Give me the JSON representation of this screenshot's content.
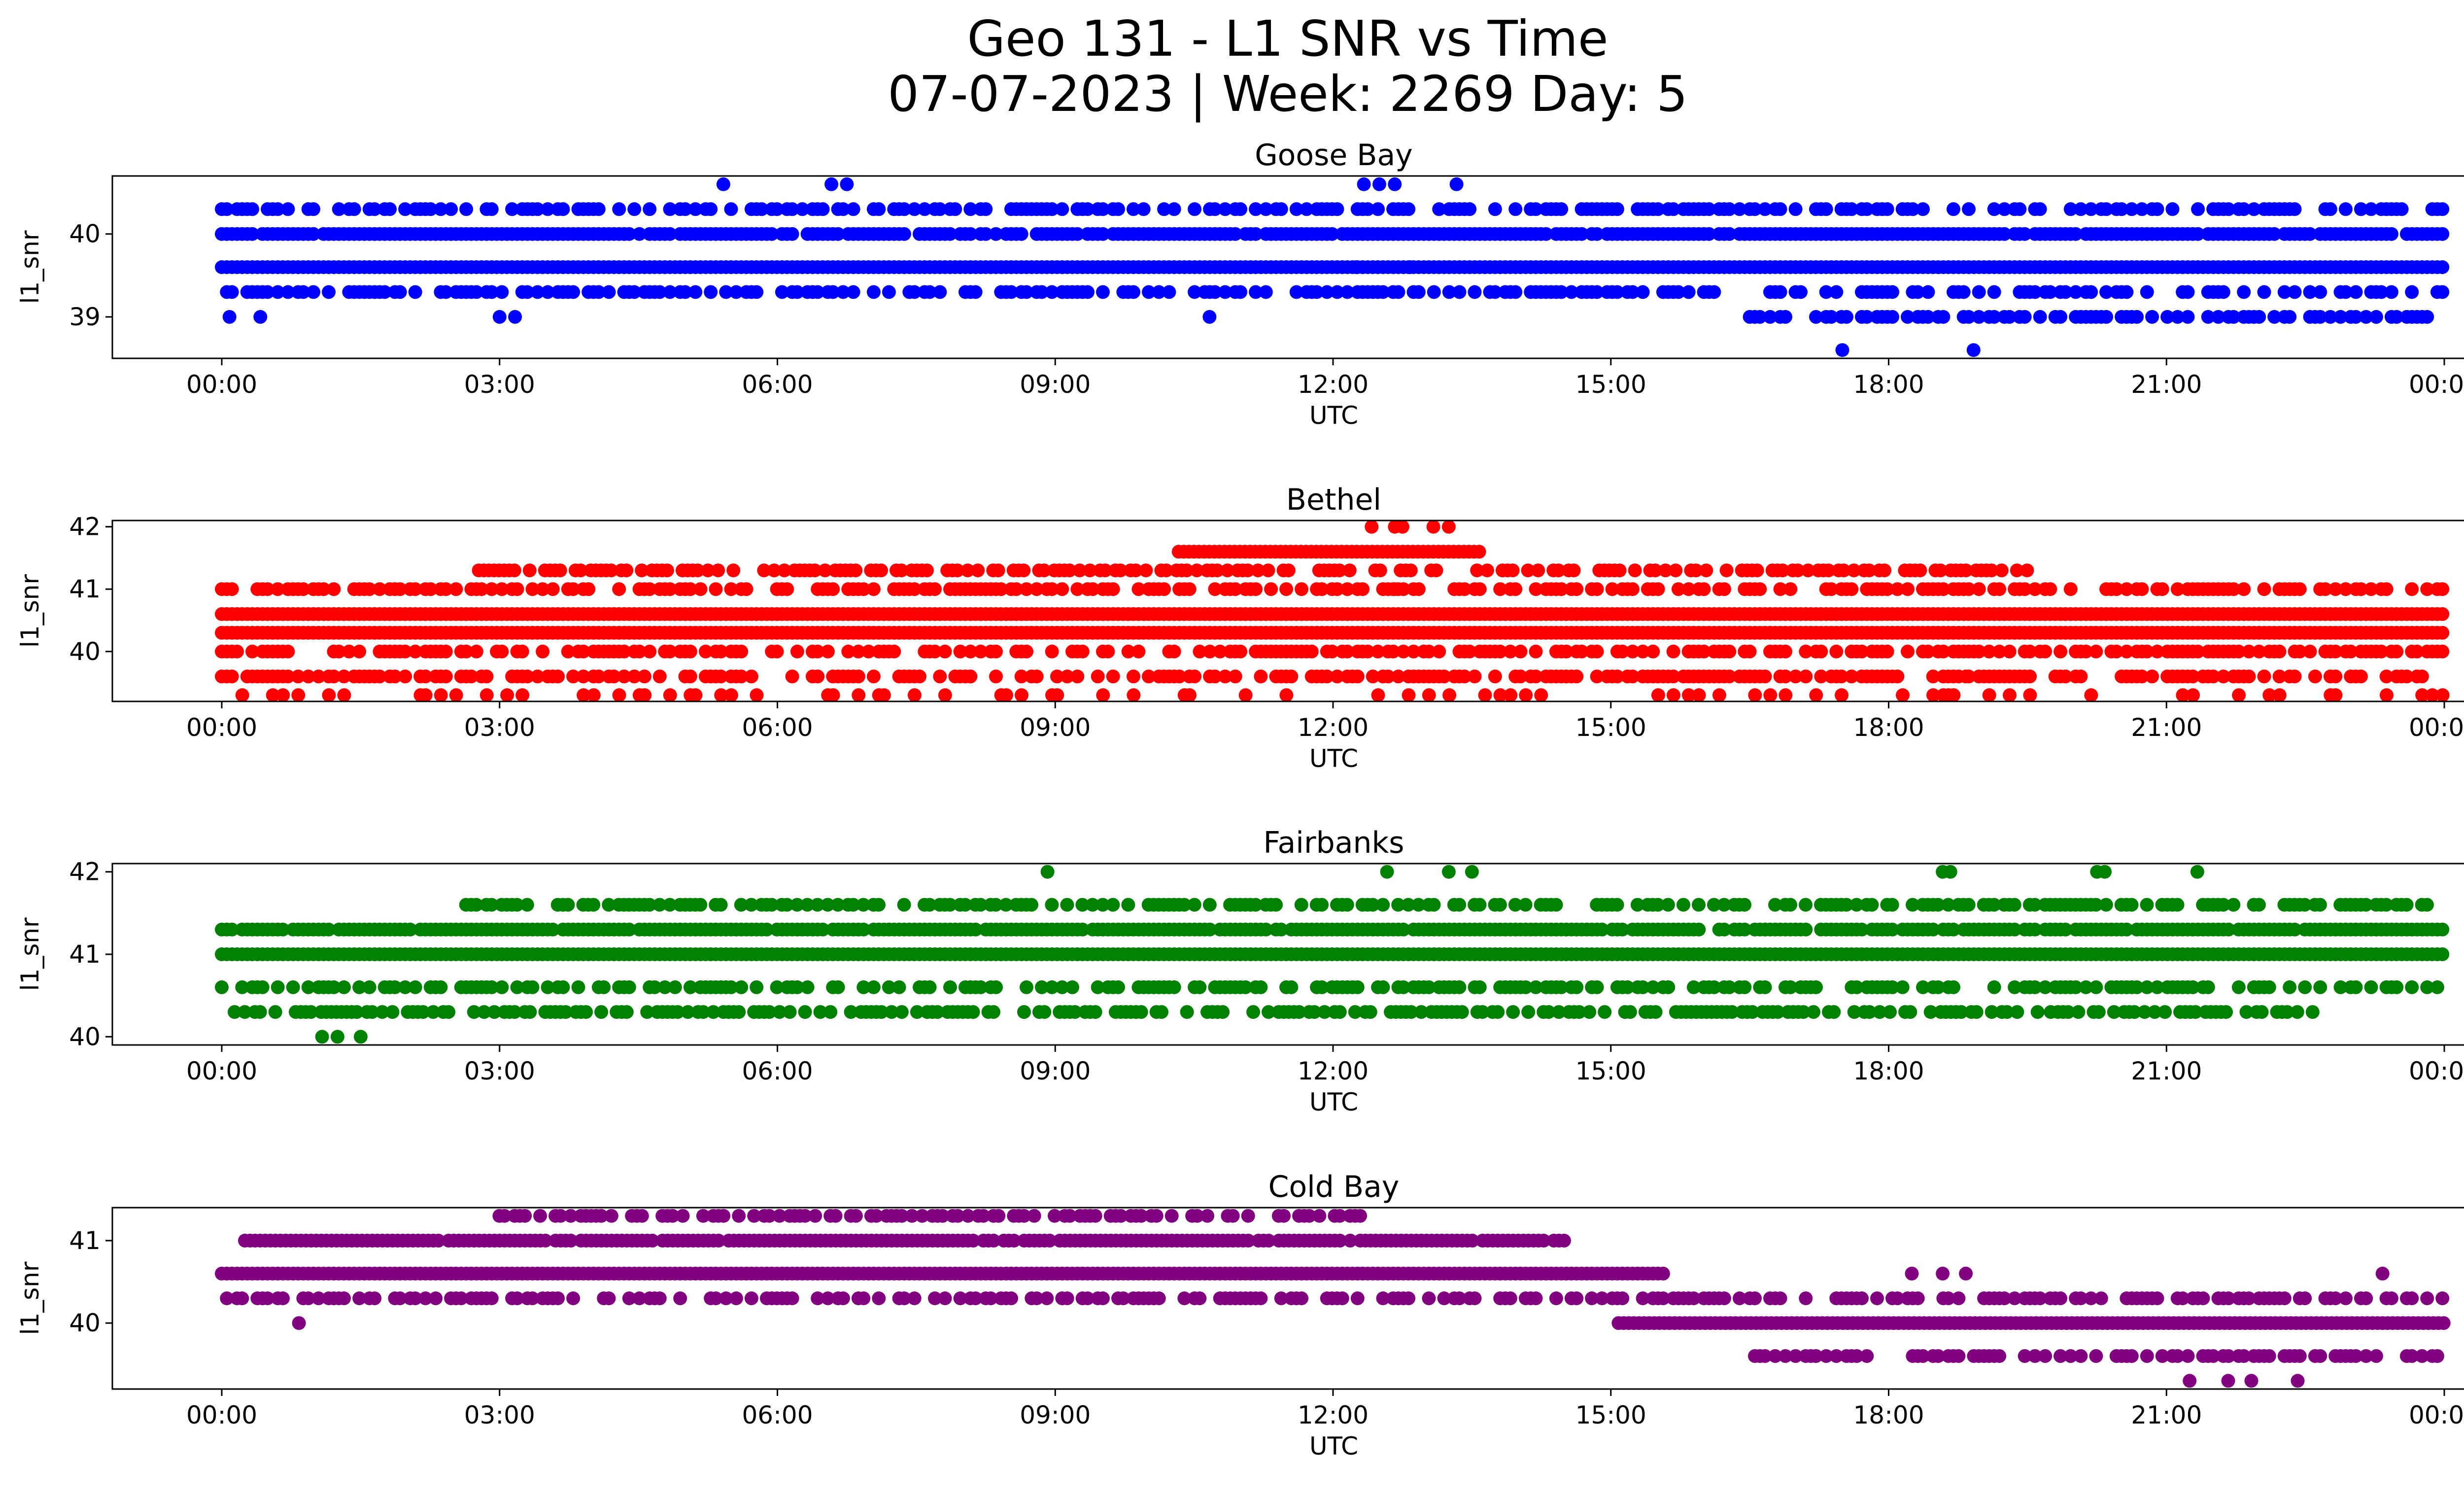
{
  "figure": {
    "title_line1": "Geo 131 - L1 SNR vs Time",
    "title_line2": "07-07-2023 | Week: 2269 Day: 5"
  },
  "chart_data": [
    {
      "type": "scatter",
      "title": "Goose Bay",
      "xlabel": "UTC",
      "ylabel": "l1_snr",
      "color": "#0000ff",
      "xlim": [
        "2023-07-07 00:00",
        "2023-07-08 00:00"
      ],
      "ylim": [
        38.5,
        40.7
      ],
      "y_ticks": [
        "39",
        "40"
      ],
      "x_ticks": [
        "00:00",
        "03:00",
        "06:00",
        "09:00",
        "12:00",
        "15:00",
        "18:00",
        "21:00",
        "00:00"
      ],
      "series": [
        {
          "x_range": [
            "00:00",
            "24:00"
          ],
          "y": 39.6,
          "coverage": "continuous"
        },
        {
          "x_range": [
            "00:00",
            "24:00"
          ],
          "y": 40.0,
          "coverage": "mostly continuous, sparse 16:30-18:00"
        },
        {
          "x_range": [
            "00:00",
            "24:00"
          ],
          "y": 39.3,
          "coverage": "intermittent"
        },
        {
          "x_range": [
            "00:00",
            "24:00"
          ],
          "y": 40.3,
          "coverage": "intermittent, dense 04:55-09:35 and 11:45-15:50"
        },
        {
          "x_range": [
            "16:30",
            "23:50"
          ],
          "y": 39.0,
          "coverage": "intermittent"
        }
      ],
      "outliers": [
        {
          "x": "00:05",
          "y": 39.0
        },
        {
          "x": "00:25",
          "y": 39.0
        },
        {
          "x": "03:00",
          "y": 39.0
        },
        {
          "x": "03:10",
          "y": 39.0
        },
        {
          "x": "10:40",
          "y": 39.0
        },
        {
          "x": "05:25",
          "y": 40.6
        },
        {
          "x": "06:35",
          "y": 40.6
        },
        {
          "x": "06:45",
          "y": 40.6
        },
        {
          "x": "12:20",
          "y": 40.6
        },
        {
          "x": "12:30",
          "y": 40.6
        },
        {
          "x": "12:40",
          "y": 40.6
        },
        {
          "x": "13:20",
          "y": 40.6
        },
        {
          "x": "17:30",
          "y": 38.6
        },
        {
          "x": "18:55",
          "y": 38.6
        },
        {
          "x": "12:15",
          "y": 39.6
        },
        {
          "x": "12:50",
          "y": 39.6
        }
      ]
    },
    {
      "type": "scatter",
      "title": "Bethel",
      "xlabel": "UTC",
      "ylabel": "l1_snr",
      "color": "#ff0000",
      "xlim": [
        "2023-07-07 00:00",
        "2023-07-08 00:00"
      ],
      "ylim": [
        39.2,
        42.1
      ],
      "y_ticks": [
        "40",
        "41",
        "42"
      ],
      "x_ticks": [
        "00:00",
        "03:00",
        "06:00",
        "09:00",
        "12:00",
        "15:00",
        "18:00",
        "21:00",
        "00:00"
      ],
      "series": [
        {
          "x_range": [
            "00:00",
            "24:00"
          ],
          "y": 40.3,
          "coverage": "continuous"
        },
        {
          "x_range": [
            "00:00",
            "24:00"
          ],
          "y": 40.6,
          "coverage": "continuous"
        },
        {
          "x_range": [
            "00:00",
            "24:00"
          ],
          "y": 40.0,
          "coverage": "intermittent"
        },
        {
          "x_range": [
            "00:00",
            "24:00"
          ],
          "y": 41.0,
          "coverage": "intermittent"
        },
        {
          "x_range": [
            "02:30",
            "19:30"
          ],
          "y": 41.3,
          "coverage": "intermittent, dense 05:50-17:50"
        },
        {
          "x_range": [
            "10:20",
            "13:35"
          ],
          "y": 41.6,
          "coverage": "continuous"
        },
        {
          "x_range": [
            "00:00",
            "24:00"
          ],
          "y": 39.6,
          "coverage": "intermittent"
        },
        {
          "x_range": [
            "00:10",
            "24:00"
          ],
          "y": 39.3,
          "coverage": "sparse"
        }
      ],
      "outliers": [
        {
          "x": "12:25",
          "y": 42.0
        },
        {
          "x": "12:40",
          "y": 42.0
        },
        {
          "x": "12:45",
          "y": 42.0
        },
        {
          "x": "13:05",
          "y": 42.0
        },
        {
          "x": "13:15",
          "y": 42.0
        },
        {
          "x": "12:40",
          "y": 41.0
        },
        {
          "x": "08:05",
          "y": 39.6
        },
        {
          "x": "18:50",
          "y": 39.6
        }
      ]
    },
    {
      "type": "scatter",
      "title": "Fairbanks",
      "xlabel": "UTC",
      "ylabel": "l1_snr",
      "color": "#008000",
      "xlim": [
        "2023-07-07 00:00",
        "2023-07-08 00:00"
      ],
      "ylim": [
        39.9,
        42.1
      ],
      "y_ticks": [
        "40",
        "41",
        "42"
      ],
      "x_ticks": [
        "00:00",
        "03:00",
        "06:00",
        "09:00",
        "12:00",
        "15:00",
        "18:00",
        "21:00",
        "00:00"
      ],
      "series": [
        {
          "x_range": [
            "00:00",
            "24:00"
          ],
          "y": 41.0,
          "coverage": "continuous"
        },
        {
          "x_range": [
            "00:00",
            "24:00"
          ],
          "y": 41.3,
          "coverage": "mostly continuous"
        },
        {
          "x_range": [
            "00:00",
            "24:00"
          ],
          "y": 40.6,
          "coverage": "intermittent"
        },
        {
          "x_range": [
            "02:35",
            "23:50"
          ],
          "y": 41.6,
          "coverage": "intermittent"
        },
        {
          "x_range": [
            "00:05",
            "22:40"
          ],
          "y": 40.3,
          "coverage": "intermittent"
        }
      ],
      "outliers": [
        {
          "x": "01:05",
          "y": 40.0
        },
        {
          "x": "01:15",
          "y": 40.0
        },
        {
          "x": "01:30",
          "y": 40.0
        },
        {
          "x": "08:55",
          "y": 42.0
        },
        {
          "x": "12:35",
          "y": 42.0
        },
        {
          "x": "13:15",
          "y": 42.0
        },
        {
          "x": "13:30",
          "y": 42.0
        },
        {
          "x": "18:35",
          "y": 42.0
        },
        {
          "x": "18:40",
          "y": 42.0
        },
        {
          "x": "20:15",
          "y": 42.0
        },
        {
          "x": "20:20",
          "y": 42.0
        },
        {
          "x": "21:20",
          "y": 42.0
        },
        {
          "x": "19:45",
          "y": 40.3
        },
        {
          "x": "16:40",
          "y": 41.3
        }
      ]
    },
    {
      "type": "scatter",
      "title": "Cold Bay",
      "xlabel": "UTC",
      "ylabel": "l1_snr",
      "color": "#800080",
      "xlim": [
        "2023-07-07 00:00",
        "2023-07-08 00:00"
      ],
      "ylim": [
        39.2,
        41.4
      ],
      "y_ticks": [
        "40",
        "41"
      ],
      "x_ticks": [
        "00:00",
        "03:00",
        "06:00",
        "09:00",
        "12:00",
        "15:00",
        "18:00",
        "21:00",
        "00:00"
      ],
      "series": [
        {
          "x_range": [
            "00:00",
            "15:35"
          ],
          "y": 40.6,
          "coverage": "continuous"
        },
        {
          "x_range": [
            "00:00",
            "24:00"
          ],
          "y": 40.3,
          "coverage": "intermittent"
        },
        {
          "x_range": [
            "00:15",
            "14:30"
          ],
          "y": 41.0,
          "coverage": "mostly continuous 01:40-14:05"
        },
        {
          "x_range": [
            "02:50",
            "12:20"
          ],
          "y": 41.3,
          "coverage": "intermittent"
        },
        {
          "x_range": [
            "15:05",
            "24:00"
          ],
          "y": 40.0,
          "coverage": "continuous"
        },
        {
          "x_range": [
            "16:30",
            "24:00"
          ],
          "y": 39.6,
          "coverage": "intermittent"
        }
      ],
      "outliers": [
        {
          "x": "00:50",
          "y": 40.0
        },
        {
          "x": "21:15",
          "y": 39.3
        },
        {
          "x": "21:40",
          "y": 39.3
        },
        {
          "x": "21:55",
          "y": 39.3
        },
        {
          "x": "22:25",
          "y": 39.3
        },
        {
          "x": "18:15",
          "y": 40.6
        },
        {
          "x": "18:35",
          "y": 40.6
        },
        {
          "x": "18:50",
          "y": 40.6
        },
        {
          "x": "23:20",
          "y": 40.6
        }
      ]
    }
  ]
}
